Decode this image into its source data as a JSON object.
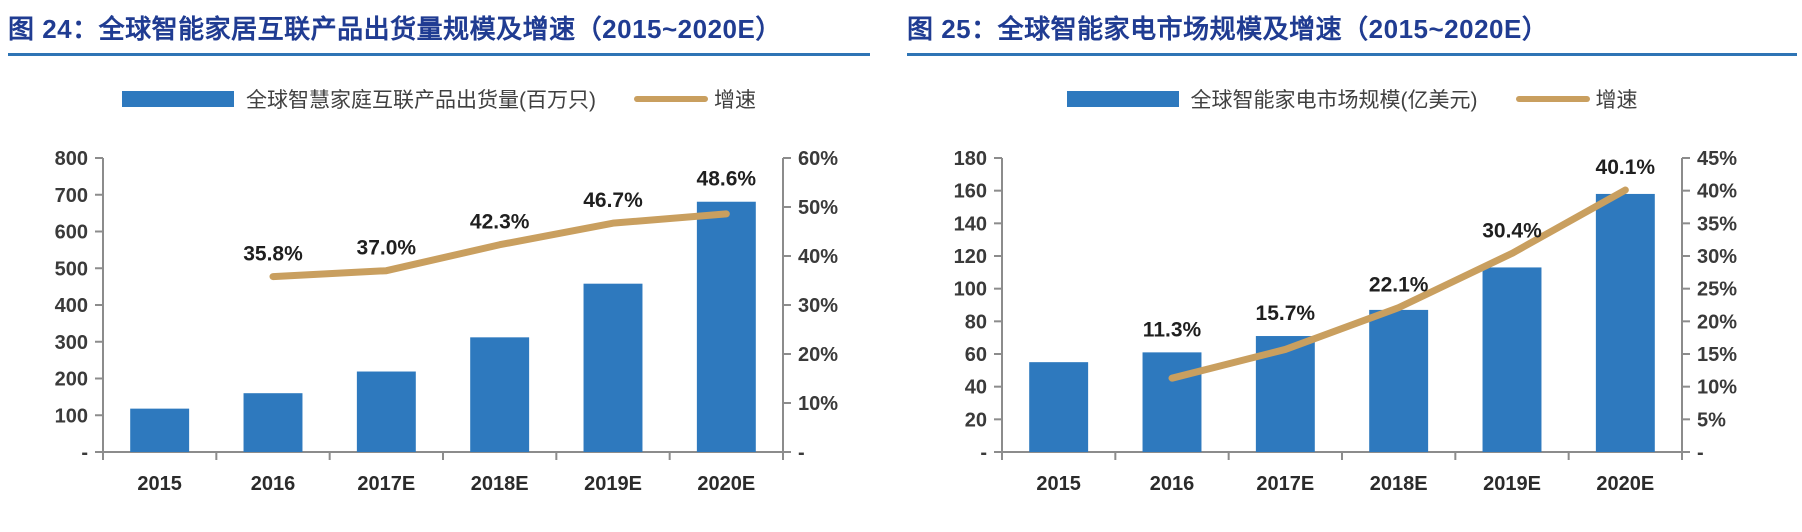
{
  "colors": {
    "background": "#FFFFFF",
    "accent_bar": "#2E79BE",
    "accent_line": "#C99F5F",
    "title_text": "#203C92",
    "title_rule": "#2E74B5",
    "axis_line": "#8C8C8C",
    "axis_text": "#3A3A3A",
    "x_label_text": "#2B2B2B",
    "data_label_text": "#1F1F1F",
    "legend_text": "#404040"
  },
  "chart_data": [
    {
      "type": "bar+line",
      "title": "图 24：全球智能家居互联产品出货量规模及增速（2015~2020E）",
      "categories": [
        "2015",
        "2016",
        "2017E",
        "2018E",
        "2019E",
        "2020E"
      ],
      "series": [
        {
          "name": "全球智慧家庭互联产品出货量(百万只)",
          "type": "bar",
          "axis": "left",
          "values": [
            118,
            160,
            219,
            312,
            458,
            681
          ]
        },
        {
          "name": "增速",
          "type": "line",
          "axis": "right",
          "values": [
            null,
            35.8,
            37.0,
            42.3,
            46.7,
            48.6
          ],
          "point_labels": [
            "",
            "35.8%",
            "37.0%",
            "42.3%",
            "46.7%",
            "48.6%"
          ]
        }
      ],
      "left_axis": {
        "min": 0,
        "max": 800,
        "step": 100,
        "tick_labels": [
          "800",
          "700",
          "600",
          "500",
          "400",
          "300",
          "200",
          "100",
          "-"
        ]
      },
      "right_axis": {
        "min": 0,
        "max": 60,
        "step": 10,
        "tick_labels": [
          "60%",
          "50%",
          "40%",
          "30%",
          "20%",
          "10%",
          "-"
        ]
      },
      "grid": false,
      "legend_position": "top"
    },
    {
      "type": "bar+line",
      "title": "图 25：全球智能家电市场规模及增速（2015~2020E）",
      "categories": [
        "2015",
        "2016",
        "2017E",
        "2018E",
        "2019E",
        "2020E"
      ],
      "series": [
        {
          "name": "全球智能家电市场规模(亿美元)",
          "type": "bar",
          "axis": "left",
          "values": [
            55,
            61,
            71,
            87,
            113,
            158
          ]
        },
        {
          "name": "增速",
          "type": "line",
          "axis": "right",
          "values": [
            null,
            11.3,
            15.7,
            22.1,
            30.4,
            40.1
          ],
          "point_labels": [
            "",
            "11.3%",
            "15.7%",
            "22.1%",
            "30.4%",
            "40.1%"
          ]
        }
      ],
      "left_axis": {
        "min": 0,
        "max": 180,
        "step": 20,
        "tick_labels": [
          "180",
          "160",
          "140",
          "120",
          "100",
          "80",
          "60",
          "40",
          "20",
          "-"
        ]
      },
      "right_axis": {
        "min": 0,
        "max": 45,
        "step": 5,
        "tick_labels": [
          "45%",
          "40%",
          "35%",
          "30%",
          "25%",
          "20%",
          "15%",
          "10%",
          "5%",
          "-"
        ]
      },
      "grid": false,
      "legend_position": "top"
    }
  ]
}
